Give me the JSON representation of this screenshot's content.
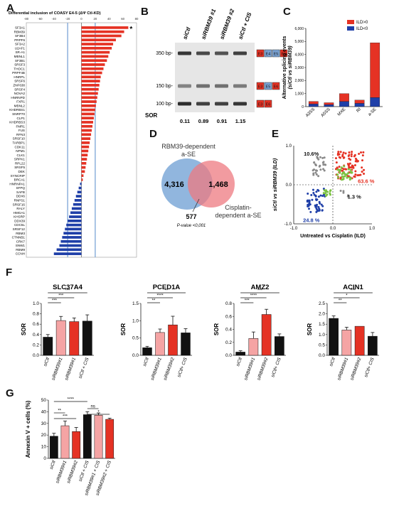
{
  "panel_labels": {
    "A": "A",
    "B": "B",
    "C": "C",
    "D": "D",
    "E": "E",
    "F": "F",
    "G": "G"
  },
  "colors": {
    "red": "#e53224",
    "blue": "#1f3fa8",
    "light_blue": "#7ba4d6",
    "pink": "#f5a4a4",
    "black": "#111111",
    "grey": "#8a8a8a",
    "green": "#7cc242",
    "venn_blue": "#7ea9d8",
    "venn_red": "#ee7a80"
  },
  "panelA": {
    "title": "Differential inclusion of COASY E4-5 (ΔΨ Ctl-KD)",
    "star": "*",
    "tick_labels": [
      "-80",
      "-60",
      "-40",
      "-20",
      "0",
      "20",
      "40",
      "60",
      "80"
    ],
    "chart_data": {
      "type": "bar",
      "orientation": "horizontal",
      "xlim": [
        -80,
        80
      ],
      "vlines": [
        -20,
        20
      ],
      "categories": [
        "SF3A1",
        "RBM39",
        "SF3B4",
        "PRPF6",
        "SF3A2",
        "U2AF1",
        "SR-A1",
        "MBNL1",
        "SF3B1",
        "SRSF3",
        "THOC1",
        "PRPF4B",
        "HNRPL",
        "SRSF6",
        "ZNF638",
        "SRSF4",
        "NOVA2",
        "HNRNPD",
        "FXR1",
        "MBNL2",
        "KHDRBS1",
        "SNRP70",
        "CLP1",
        "KHDRBS3",
        "FMR1",
        "FUS",
        "RFN3",
        "SRSF10",
        "TARBP1",
        "CDK11",
        "NPM1",
        "CLK1",
        "SRPK1",
        "RPL22",
        "SRSF5",
        "DEK",
        "SYNCRIP",
        "BRCA1",
        "HNRNPA1",
        "SFPQ",
        "SAFB",
        "DDX6",
        "RNPS1",
        "SRSF16",
        "RALY",
        "HMGA1",
        "KHSRP",
        "DDX39",
        "CDC5L",
        "SRSF12",
        "RBM3",
        "CTNNB1",
        "CRK7",
        "SNW1",
        "RBM9",
        "CCNH"
      ],
      "values": [
        68,
        62,
        58,
        50,
        46,
        44,
        41,
        39,
        37,
        34,
        32,
        30,
        28,
        27,
        26,
        25,
        24,
        23,
        22,
        21,
        20,
        19,
        18,
        17,
        16,
        15,
        14,
        13,
        12,
        11,
        10,
        9,
        8,
        7,
        6,
        5,
        3,
        2,
        -2,
        -4,
        -6,
        -8,
        -10,
        -12,
        -14,
        -16,
        -18,
        -20,
        -22,
        -24,
        -26,
        -28,
        -30,
        -32,
        -36,
        -40
      ]
    }
  },
  "panelB": {
    "lanes": [
      "siCtl",
      "siRBM39 #1",
      "siRBM39 #2",
      "siCtl + CIS"
    ],
    "markers": [
      "350 bp-",
      "150 bp-",
      "100 bp-"
    ],
    "sor_label": "SOR",
    "sor_values": [
      "0.11",
      "0.89",
      "0.91",
      "1.15"
    ],
    "isoforms": [
      [
        "E3",
        "E4",
        "E5",
        "E6"
      ],
      [
        "E3",
        "E5",
        "E6"
      ],
      [
        "E3",
        "E6"
      ]
    ]
  },
  "panelC": {
    "ylabel": "Alternative splicing events",
    "ylabel2": "(siCtl vs siRBM39)",
    "legend": [
      "ILD>0",
      "ILD<0"
    ],
    "tick_labels": [
      "0",
      "1,000",
      "2,000",
      "3,000",
      "4,000",
      "5,000",
      "6,000"
    ],
    "chart_data": {
      "type": "bar",
      "stacked": true,
      "categories": [
        "A3SS",
        "A5SS",
        "MXE",
        "RI",
        "a-SE"
      ],
      "ylim": [
        0,
        6000
      ],
      "series": [
        {
          "name": "ILD<0",
          "values": [
            200,
            150,
            400,
            250,
            700
          ]
        },
        {
          "name": "ILD>0",
          "values": [
            200,
            150,
            600,
            250,
            4200
          ]
        }
      ]
    }
  },
  "panelD": {
    "label_left": "RBM39-dependent",
    "label_left2": "a-SE",
    "label_right": "Cisplatin-",
    "label_right2": "dependent a-SE",
    "left_only": "4,316",
    "overlap": "577",
    "right_only": "1,468",
    "pvalue": "P-value <0,001"
  },
  "panelE": {
    "xlabel": "Untreated vs Cisplatin (ILD)",
    "ylabel": "siCtl vs siRBM39 (ILD)",
    "tick_labels_x": [
      "-1.0",
      "0.0",
      "1.0"
    ],
    "tick_labels_y": [
      "-1.0",
      "0.0",
      "1.0"
    ],
    "chart_data": {
      "type": "scatter",
      "xlim": [
        -1,
        1
      ],
      "ylim": [
        -1,
        1
      ],
      "quadrants": [
        {
          "label": "10.6%",
          "quadrant": "upper-left"
        },
        {
          "label": "63.6 %",
          "quadrant": "upper-right"
        },
        {
          "label": "24.8 %",
          "quadrant": "lower-left"
        },
        {
          "label": "1.3 %",
          "quadrant": "lower-right"
        }
      ]
    }
  },
  "panelF": {
    "ylabel": "SOR",
    "chart_data": [
      {
        "type": "bar",
        "title": "SLC37A4",
        "categories": [
          "siCtl",
          "siRBM39#1",
          "siRBM39#1",
          "siCtl + CIS"
        ],
        "values": [
          0.35,
          0.67,
          0.65,
          0.66
        ],
        "errors": [
          0.05,
          0.08,
          0.07,
          0.12
        ],
        "ylim": [
          0,
          1.0
        ],
        "ticks": [
          "0.0",
          "0.2",
          "0.4",
          "0.6",
          "0.8",
          "1.0"
        ],
        "sig": [
          "***",
          "***",
          "***"
        ]
      },
      {
        "type": "bar",
        "title": "PCED1A",
        "categories": [
          "siCtl",
          "siRBM39#1",
          "siRBM39#2",
          "siCtl+ CIS"
        ],
        "values": [
          0.22,
          0.66,
          0.88,
          0.65
        ],
        "errors": [
          0.04,
          0.1,
          0.25,
          0.12
        ],
        "ylim": [
          0,
          1.5
        ],
        "ticks": [
          "0.0",
          "0.5",
          "1.0",
          "1.5"
        ],
        "sig": [
          "**",
          "****",
          "**"
        ]
      },
      {
        "type": "bar",
        "title": "AMZ2",
        "categories": [
          "siCtl",
          "siRBM39#1",
          "siRBM39#2",
          "siCtl+ CIS"
        ],
        "values": [
          0.05,
          0.26,
          0.63,
          0.29
        ],
        "errors": [
          0.02,
          0.1,
          0.08,
          0.04
        ],
        "ylim": [
          0,
          0.8
        ],
        "ticks": [
          "0.0",
          "0.2",
          "0.4",
          "0.6",
          "0.8"
        ],
        "sig": [
          "***",
          "****",
          "***"
        ]
      },
      {
        "type": "bar",
        "title": "ACIN1",
        "categories": [
          "siCtl",
          "siRBM39#1",
          "siRBM39#2",
          "siCtl+ CIS"
        ],
        "values": [
          1.78,
          1.22,
          1.4,
          0.92
        ],
        "errors": [
          0.12,
          0.13,
          0.0,
          0.18
        ],
        "ylim": [
          0,
          2.5
        ],
        "ticks": [
          "0.0",
          "0.5",
          "1.0",
          "1.5",
          "2.0",
          "2.5"
        ],
        "sig": [
          "**",
          "*",
          "***"
        ]
      }
    ]
  },
  "panelG": {
    "ylabel": "Annexin V + cells (%)",
    "chart_data": {
      "type": "bar",
      "categories": [
        "siCtl",
        "siRBM39#1",
        "siRBM39#2",
        "siCtl + CIS",
        "siRBM39#1 + CIS",
        "siRBM39#2 + CIS"
      ],
      "values": [
        19,
        28,
        23,
        37.5,
        37,
        33.5
      ],
      "errors": [
        2.5,
        4,
        3.5,
        2.5,
        2,
        1
      ],
      "ylim": [
        0,
        50
      ],
      "ticks": [
        "0",
        "10",
        "20",
        "30",
        "40",
        "50"
      ],
      "sig": [
        "****",
        "**",
        "***",
        "ns",
        "*"
      ]
    }
  }
}
